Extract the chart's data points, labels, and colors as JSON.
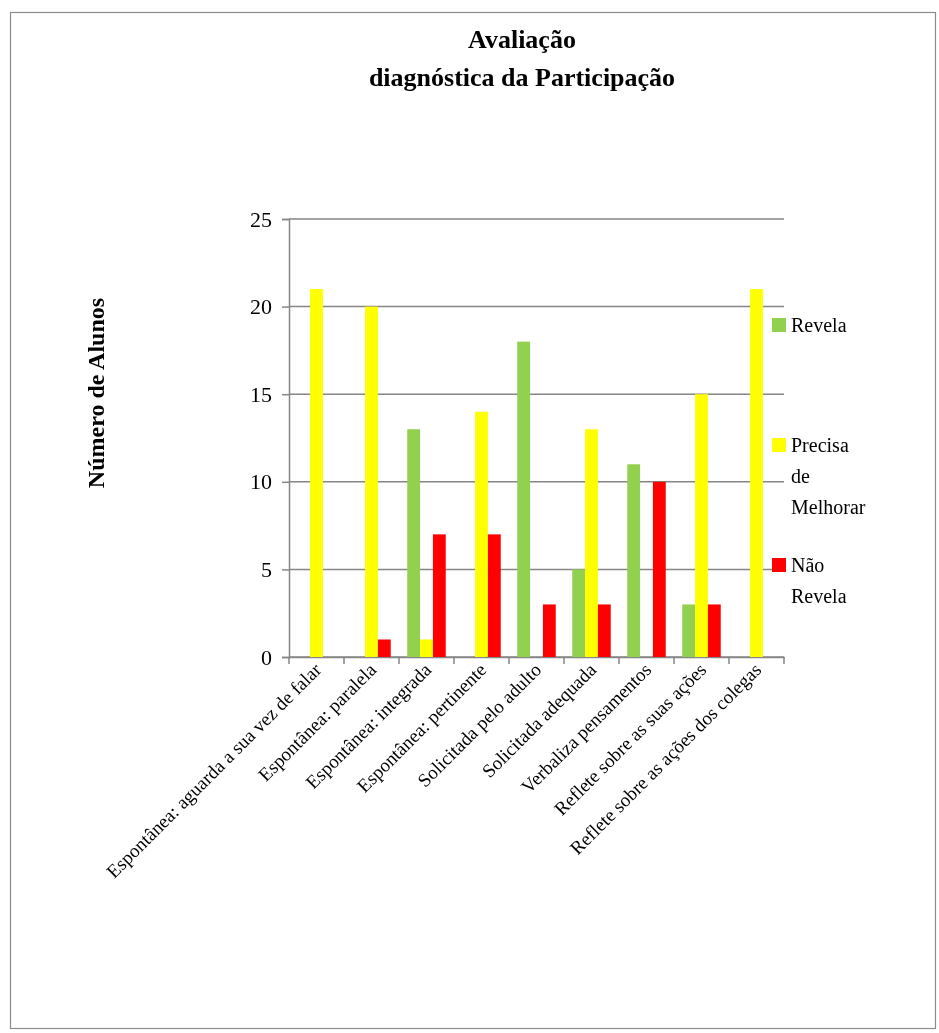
{
  "chart_data": {
    "type": "bar",
    "title": "Avaliação\ndiagnóstica da Participação",
    "ylabel": "Número de Alunos",
    "categories": [
      "Espontânea: aguarda a sua vez de falar",
      "Espontânea: paralela",
      "Espontânea: integrada",
      "Espontânea: pertinente",
      "Solicitada pelo adulto",
      "Solicitada adequada",
      "Verbaliza pensamentos",
      "Reflete sobre as suas ações",
      "Reflete sobre as ações dos colegas"
    ],
    "series": [
      {
        "name": "Revela",
        "color": "#92d050",
        "values": [
          0,
          0,
          13,
          0,
          18,
          5,
          11,
          3,
          0
        ]
      },
      {
        "name": "Precisa de Melhorar",
        "color": "#ffff00",
        "values": [
          21,
          20,
          1,
          14,
          0,
          13,
          0,
          15,
          21
        ]
      },
      {
        "name": "Não Revela",
        "color": "#ff0000",
        "values": [
          0,
          1,
          7,
          7,
          3,
          3,
          10,
          3,
          0
        ]
      }
    ],
    "ylim": [
      0,
      25
    ],
    "yticks": [
      0,
      5,
      10,
      15,
      20,
      25
    ],
    "grid": "y",
    "legend": "right"
  }
}
